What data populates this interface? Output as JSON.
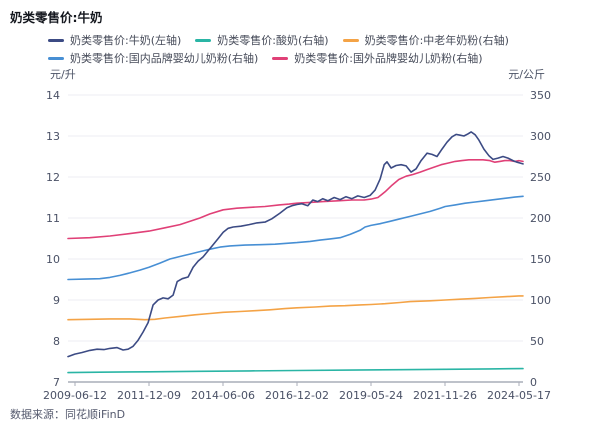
{
  "header": {
    "title": "奶类零售价:牛奶"
  },
  "footer": {
    "source": "数据来源：同花顺iFinD"
  },
  "chart_data": {
    "type": "line",
    "title": "奶类零售价:牛奶",
    "grid": true,
    "legend_position": "top",
    "left_axis": {
      "unit": "元/升",
      "min": 7,
      "max": 14,
      "ticks": [
        14,
        13,
        12,
        11,
        10,
        9,
        8,
        7
      ]
    },
    "right_axis": {
      "unit": "元/公斤",
      "min": 0,
      "max": 350,
      "ticks": [
        350,
        300,
        250,
        200,
        150,
        100,
        50,
        0
      ]
    },
    "x_ticks": [
      "2009-06-12",
      "2011-12-09",
      "2014-06-06",
      "2016-12-02",
      "2019-05-24",
      "2021-11-26",
      "2024-05-17"
    ],
    "series": [
      {
        "name": "奶类零售价:牛奶(左轴)",
        "axis": "left",
        "color": "#3c4b84",
        "points": [
          [
            0,
            7.62
          ],
          [
            0.015,
            7.68
          ],
          [
            0.031,
            7.72
          ],
          [
            0.048,
            7.77
          ],
          [
            0.064,
            7.8
          ],
          [
            0.079,
            7.79
          ],
          [
            0.092,
            7.82
          ],
          [
            0.108,
            7.84
          ],
          [
            0.121,
            7.78
          ],
          [
            0.132,
            7.8
          ],
          [
            0.143,
            7.87
          ],
          [
            0.154,
            8.02
          ],
          [
            0.165,
            8.22
          ],
          [
            0.176,
            8.45
          ],
          [
            0.187,
            8.88
          ],
          [
            0.198,
            9.0
          ],
          [
            0.209,
            9.05
          ],
          [
            0.22,
            9.03
          ],
          [
            0.231,
            9.12
          ],
          [
            0.24,
            9.45
          ],
          [
            0.251,
            9.52
          ],
          [
            0.264,
            9.56
          ],
          [
            0.275,
            9.8
          ],
          [
            0.286,
            9.95
          ],
          [
            0.297,
            10.05
          ],
          [
            0.308,
            10.2
          ],
          [
            0.319,
            10.35
          ],
          [
            0.33,
            10.5
          ],
          [
            0.341,
            10.65
          ],
          [
            0.352,
            10.75
          ],
          [
            0.363,
            10.78
          ],
          [
            0.38,
            10.8
          ],
          [
            0.398,
            10.84
          ],
          [
            0.415,
            10.88
          ],
          [
            0.433,
            10.9
          ],
          [
            0.448,
            10.98
          ],
          [
            0.466,
            11.12
          ],
          [
            0.481,
            11.25
          ],
          [
            0.492,
            11.3
          ],
          [
            0.503,
            11.33
          ],
          [
            0.514,
            11.35
          ],
          [
            0.527,
            11.3
          ],
          [
            0.538,
            11.44
          ],
          [
            0.549,
            11.4
          ],
          [
            0.56,
            11.47
          ],
          [
            0.571,
            11.42
          ],
          [
            0.585,
            11.5
          ],
          [
            0.598,
            11.45
          ],
          [
            0.611,
            11.52
          ],
          [
            0.624,
            11.47
          ],
          [
            0.637,
            11.54
          ],
          [
            0.651,
            11.5
          ],
          [
            0.664,
            11.55
          ],
          [
            0.675,
            11.68
          ],
          [
            0.686,
            11.95
          ],
          [
            0.695,
            12.3
          ],
          [
            0.701,
            12.37
          ],
          [
            0.71,
            12.22
          ],
          [
            0.721,
            12.28
          ],
          [
            0.732,
            12.3
          ],
          [
            0.743,
            12.27
          ],
          [
            0.754,
            12.12
          ],
          [
            0.765,
            12.2
          ],
          [
            0.776,
            12.4
          ],
          [
            0.789,
            12.58
          ],
          [
            0.8,
            12.55
          ],
          [
            0.811,
            12.5
          ],
          [
            0.822,
            12.68
          ],
          [
            0.833,
            12.85
          ],
          [
            0.844,
            12.98
          ],
          [
            0.853,
            13.04
          ],
          [
            0.862,
            13.02
          ],
          [
            0.87,
            13.0
          ],
          [
            0.879,
            13.05
          ],
          [
            0.886,
            13.1
          ],
          [
            0.895,
            13.03
          ],
          [
            0.903,
            12.9
          ],
          [
            0.914,
            12.68
          ],
          [
            0.925,
            12.52
          ],
          [
            0.934,
            12.43
          ],
          [
            0.945,
            12.46
          ],
          [
            0.956,
            12.5
          ],
          [
            0.967,
            12.46
          ],
          [
            0.978,
            12.4
          ],
          [
            0.987,
            12.36
          ],
          [
            1,
            12.32
          ]
        ]
      },
      {
        "name": "奶类零售价:酸奶(右轴)",
        "axis": "right",
        "color": "#2ab5a5",
        "points": [
          [
            0,
            11.5
          ],
          [
            0.07,
            12
          ],
          [
            0.178,
            12.5
          ],
          [
            0.29,
            13
          ],
          [
            0.4,
            13.5
          ],
          [
            0.503,
            14
          ],
          [
            0.62,
            14.5
          ],
          [
            0.73,
            15
          ],
          [
            0.829,
            15.5
          ],
          [
            0.927,
            16
          ],
          [
            1,
            16.3
          ]
        ]
      },
      {
        "name": "奶类零售价:中老年奶粉(右轴)",
        "axis": "right",
        "color": "#f4a346",
        "points": [
          [
            0,
            76
          ],
          [
            0.048,
            76.5
          ],
          [
            0.092,
            77
          ],
          [
            0.136,
            77
          ],
          [
            0.169,
            76
          ],
          [
            0.191,
            76.5
          ],
          [
            0.213,
            78
          ],
          [
            0.246,
            80
          ],
          [
            0.279,
            82
          ],
          [
            0.312,
            83.5
          ],
          [
            0.341,
            85
          ],
          [
            0.378,
            86
          ],
          [
            0.411,
            87
          ],
          [
            0.444,
            88
          ],
          [
            0.477,
            89.5
          ],
          [
            0.503,
            90.5
          ],
          [
            0.543,
            91.5
          ],
          [
            0.576,
            92.5
          ],
          [
            0.609,
            93
          ],
          [
            0.642,
            94
          ],
          [
            0.666,
            94.5
          ],
          [
            0.697,
            95.5
          ],
          [
            0.73,
            97
          ],
          [
            0.752,
            98
          ],
          [
            0.774,
            98.5
          ],
          [
            0.796,
            99
          ],
          [
            0.829,
            100
          ],
          [
            0.862,
            101
          ],
          [
            0.895,
            102
          ],
          [
            0.927,
            103
          ],
          [
            0.96,
            104
          ],
          [
            0.991,
            105
          ],
          [
            1,
            105
          ]
        ]
      },
      {
        "name": "奶类零售价:国内品牌婴幼儿奶粉(右轴)",
        "axis": "right",
        "color": "#478fd4",
        "points": [
          [
            0,
            125
          ],
          [
            0.037,
            125.5
          ],
          [
            0.07,
            126
          ],
          [
            0.092,
            127.5
          ],
          [
            0.114,
            130
          ],
          [
            0.136,
            133
          ],
          [
            0.158,
            136.5
          ],
          [
            0.178,
            140
          ],
          [
            0.202,
            145
          ],
          [
            0.224,
            150
          ],
          [
            0.246,
            153
          ],
          [
            0.268,
            156
          ],
          [
            0.29,
            159
          ],
          [
            0.312,
            162
          ],
          [
            0.334,
            164.5
          ],
          [
            0.356,
            166
          ],
          [
            0.389,
            167
          ],
          [
            0.422,
            167.5
          ],
          [
            0.455,
            168
          ],
          [
            0.477,
            169
          ],
          [
            0.503,
            170
          ],
          [
            0.532,
            171.5
          ],
          [
            0.554,
            173
          ],
          [
            0.576,
            174.5
          ],
          [
            0.598,
            176
          ],
          [
            0.62,
            180
          ],
          [
            0.642,
            185
          ],
          [
            0.653,
            189
          ],
          [
            0.666,
            191
          ],
          [
            0.686,
            193
          ],
          [
            0.708,
            196
          ],
          [
            0.73,
            199
          ],
          [
            0.752,
            202
          ],
          [
            0.774,
            205
          ],
          [
            0.796,
            208
          ],
          [
            0.818,
            212
          ],
          [
            0.829,
            214
          ],
          [
            0.851,
            216
          ],
          [
            0.873,
            218
          ],
          [
            0.895,
            219.5
          ],
          [
            0.916,
            221
          ],
          [
            0.938,
            222.5
          ],
          [
            0.96,
            224
          ],
          [
            0.982,
            225.5
          ],
          [
            1,
            226.5
          ]
        ]
      },
      {
        "name": "奶类零售价:国外品牌婴幼儿奶粉(右轴)",
        "axis": "right",
        "color": "#e04077",
        "points": [
          [
            0,
            175
          ],
          [
            0.048,
            176
          ],
          [
            0.092,
            178
          ],
          [
            0.136,
            181
          ],
          [
            0.178,
            184
          ],
          [
            0.213,
            188
          ],
          [
            0.246,
            192
          ],
          [
            0.29,
            200
          ],
          [
            0.312,
            205
          ],
          [
            0.341,
            210
          ],
          [
            0.371,
            212
          ],
          [
            0.402,
            213
          ],
          [
            0.433,
            214
          ],
          [
            0.464,
            216
          ],
          [
            0.486,
            217
          ],
          [
            0.503,
            218
          ],
          [
            0.532,
            219
          ],
          [
            0.56,
            220
          ],
          [
            0.593,
            221
          ],
          [
            0.624,
            222
          ],
          [
            0.651,
            222
          ],
          [
            0.666,
            223
          ],
          [
            0.681,
            225
          ],
          [
            0.697,
            232
          ],
          [
            0.712,
            240
          ],
          [
            0.727,
            247
          ],
          [
            0.743,
            251
          ],
          [
            0.758,
            253
          ],
          [
            0.774,
            256
          ],
          [
            0.789,
            259
          ],
          [
            0.804,
            262
          ],
          [
            0.82,
            265
          ],
          [
            0.835,
            267
          ],
          [
            0.851,
            269
          ],
          [
            0.866,
            270
          ],
          [
            0.881,
            271
          ],
          [
            0.897,
            271
          ],
          [
            0.912,
            271
          ],
          [
            0.927,
            270
          ],
          [
            0.938,
            268
          ],
          [
            0.949,
            269
          ],
          [
            0.96,
            270
          ],
          [
            0.971,
            270
          ],
          [
            0.982,
            269
          ],
          [
            0.991,
            270
          ],
          [
            1,
            269
          ]
        ]
      }
    ]
  }
}
